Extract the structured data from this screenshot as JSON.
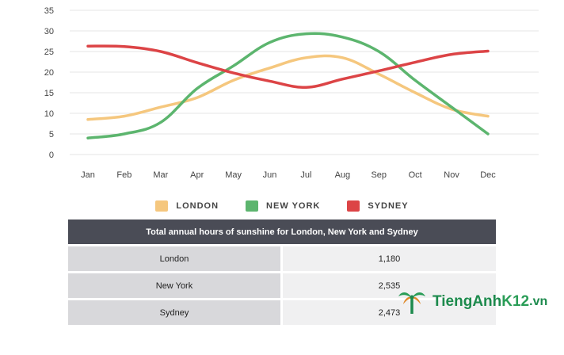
{
  "chart_data": {
    "type": "line",
    "categories": [
      "Jan",
      "Feb",
      "Mar",
      "Apr",
      "May",
      "Jun",
      "Jul",
      "Aug",
      "Sep",
      "Oct",
      "Nov",
      "Dec"
    ],
    "y_ticks": [
      0,
      5,
      10,
      15,
      20,
      25,
      30,
      35
    ],
    "ylim": [
      0,
      35
    ],
    "grid": true,
    "legend_placement": "bottom-center",
    "series": [
      {
        "name": "LONDON",
        "color": "#f5c77e",
        "values": [
          8.5,
          9.3,
          11.5,
          13.8,
          18.0,
          21.0,
          23.5,
          23.5,
          19.5,
          15.0,
          11.0,
          9.3
        ]
      },
      {
        "name": "NEW YORK",
        "color": "#5cb56e",
        "values": [
          4.0,
          5.0,
          7.8,
          16.0,
          21.5,
          27.2,
          29.3,
          28.5,
          25.0,
          18.0,
          11.5,
          5.0
        ]
      },
      {
        "name": "SYDNEY",
        "color": "#dc4446",
        "values": [
          26.3,
          26.2,
          25.0,
          22.3,
          19.8,
          17.8,
          16.3,
          18.3,
          20.3,
          22.4,
          24.3,
          25.1
        ]
      }
    ]
  },
  "table": {
    "title": "Total annual hours of sunshine for London, New York and Sydney",
    "rows": [
      {
        "city": "London",
        "value": "1,180"
      },
      {
        "city": "New York",
        "value": "2,535"
      },
      {
        "city": "Sydney",
        "value": "2,473"
      }
    ]
  },
  "watermark": {
    "brand": "TiengAnh",
    "brand_k12": "K12",
    "domain": ".vn",
    "colors": {
      "green": "#1d8a4d",
      "orange": "#e08a2c"
    },
    "icon": "palm-tree-logo-icon"
  }
}
